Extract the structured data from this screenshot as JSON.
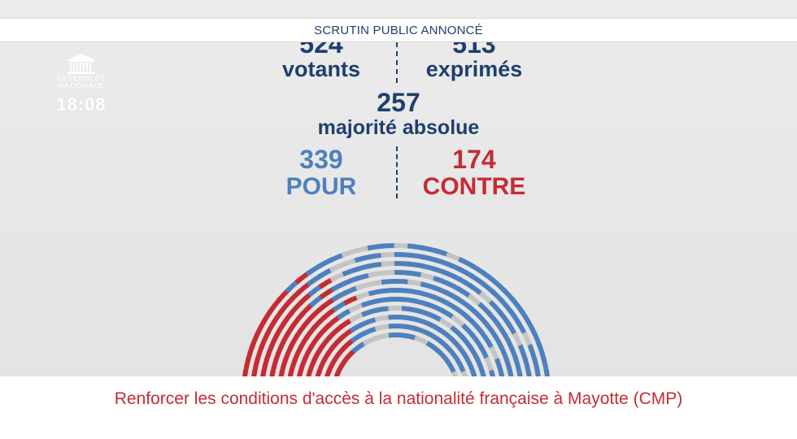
{
  "header": {
    "title": "SCRUTIN PUBLIC ANNONCÉ"
  },
  "logo": {
    "line1": "ASSEMBLÉE",
    "line2": "NATIONALE"
  },
  "clock": "18:08",
  "results": {
    "votants": {
      "value": "524",
      "label": "votants"
    },
    "exprimes": {
      "value": "513",
      "label": "exprimés"
    },
    "majorite": {
      "value": "257",
      "label": "majorité absolue"
    },
    "pour": {
      "value": "339",
      "label": "POUR"
    },
    "contre": {
      "value": "174",
      "label": "CONTRE"
    }
  },
  "colors": {
    "navy": "#1f3f6e",
    "pour": "#4e80bd",
    "contre": "#c42c34",
    "abstention": "#c4c4c4"
  },
  "hemicycle": {
    "pour": 339,
    "contre": 174,
    "exprimes": 513,
    "votants": 524
  },
  "footer": {
    "text": "Renforcer les conditions d'accès à la nationalité française à Mayotte (CMP)"
  }
}
